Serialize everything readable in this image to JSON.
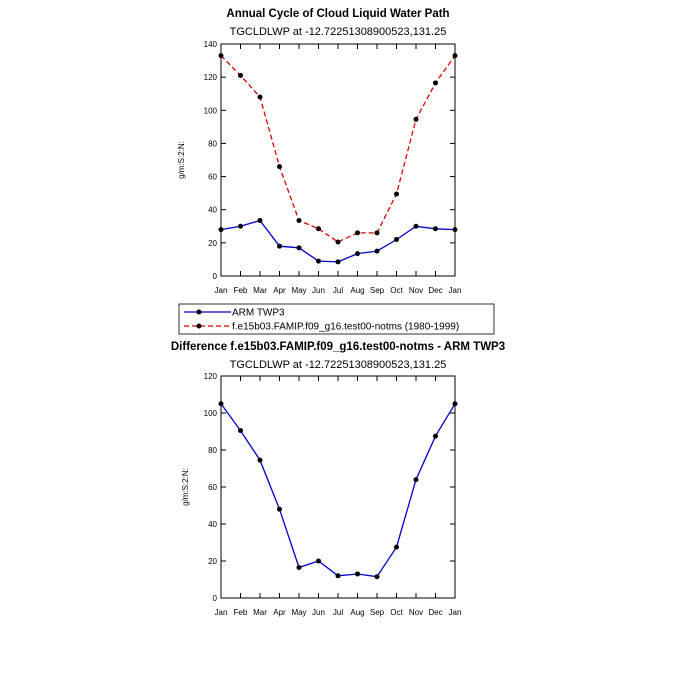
{
  "chart_data": [
    {
      "type": "line",
      "title": "Annual Cycle of Cloud Liquid Water Path",
      "subtitle": "TGCLDLWP at -12.72251308900523,131.25",
      "ylabel": "g/m:S:2:N:",
      "categories": [
        "Jan",
        "Feb",
        "Mar",
        "Apr",
        "May",
        "Jun",
        "Jul",
        "Aug",
        "Sep",
        "Oct",
        "Nov",
        "Dec",
        "Jan"
      ],
      "ylim": [
        0,
        140
      ],
      "yticks": [
        "0",
        "20",
        "40",
        "60",
        "80",
        "100",
        "120",
        "140"
      ],
      "series": [
        {
          "name": "ARM TWP3",
          "color": "#0000cc",
          "style": "solid",
          "values": [
            28,
            30,
            33.5,
            18,
            17,
            9,
            8.5,
            13.5,
            15,
            22,
            30,
            28.5,
            28
          ]
        },
        {
          "name": "f.e15b03.FAMIP.f09_g16.test00-notms (1980-1999)",
          "color": "#e00000",
          "style": "dashed",
          "values": [
            133,
            121,
            108,
            66,
            33.5,
            28.5,
            20.5,
            26,
            26,
            49.5,
            94.5,
            116.5,
            133
          ]
        }
      ]
    },
    {
      "type": "line",
      "title": "Difference f.e15b03.FAMIP.f09_g16.test00-notms - ARM TWP3",
      "subtitle": "TGCLDLWP at -12.72251308900523,131.25",
      "ylabel": "g/m:S:2:N:",
      "categories": [
        "Jan",
        "Feb",
        "Mar",
        "Apr",
        "May",
        "Jun",
        "Jul",
        "Aug",
        "Sep",
        "Oct",
        "Nov",
        "Dec",
        "Jan"
      ],
      "ylim": [
        0,
        120
      ],
      "yticks": [
        "0",
        "20",
        "40",
        "60",
        "80",
        "100",
        "120"
      ],
      "series": [
        {
          "name": "",
          "color": "#0000cc",
          "style": "solid",
          "values": [
            105,
            90.5,
            74.5,
            48,
            16.5,
            20,
            12,
            13,
            11.5,
            27.5,
            64,
            87.5,
            105
          ]
        }
      ]
    }
  ]
}
